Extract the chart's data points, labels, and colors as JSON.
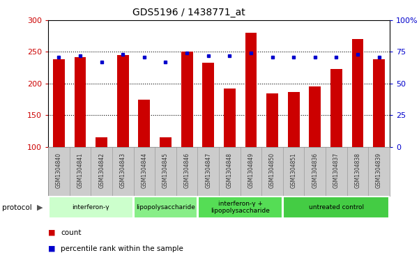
{
  "title": "GDS5196 / 1438771_at",
  "samples": [
    "GSM1304840",
    "GSM1304841",
    "GSM1304842",
    "GSM1304843",
    "GSM1304844",
    "GSM1304845",
    "GSM1304846",
    "GSM1304847",
    "GSM1304848",
    "GSM1304849",
    "GSM1304850",
    "GSM1304851",
    "GSM1304836",
    "GSM1304837",
    "GSM1304838",
    "GSM1304839"
  ],
  "counts": [
    238,
    242,
    115,
    245,
    174,
    115,
    250,
    233,
    192,
    280,
    184,
    187,
    195,
    223,
    270,
    238
  ],
  "percentiles": [
    71,
    72,
    67,
    73,
    71,
    67,
    74,
    72,
    72,
    74,
    71,
    71,
    71,
    71,
    73,
    71
  ],
  "ylim_left": [
    100,
    300
  ],
  "ylim_right": [
    0,
    100
  ],
  "yticks_left": [
    100,
    150,
    200,
    250,
    300
  ],
  "yticks_right": [
    0,
    25,
    50,
    75,
    100
  ],
  "bar_color": "#cc0000",
  "dot_color": "#0000cc",
  "bar_bottom": 100,
  "protocol_groups": [
    {
      "label": "interferon-γ",
      "start": 0,
      "end": 4,
      "color": "#ccffcc"
    },
    {
      "label": "lipopolysaccharide",
      "start": 4,
      "end": 7,
      "color": "#88ee88"
    },
    {
      "label": "interferon-γ +\nlipopolysaccharide",
      "start": 7,
      "end": 11,
      "color": "#55dd55"
    },
    {
      "label": "untreated control",
      "start": 11,
      "end": 16,
      "color": "#44cc44"
    }
  ],
  "legend_count_label": "count",
  "legend_pct_label": "percentile rank within the sample",
  "bg_color": "#ffffff",
  "plot_bg_color": "#ffffff",
  "grid_color": "#000000",
  "tick_label_color_left": "#cc0000",
  "tick_label_color_right": "#0000cc",
  "sample_bg_color": "#cccccc",
  "sample_text_color": "#333333",
  "grid_lines": [
    150,
    200,
    250
  ]
}
